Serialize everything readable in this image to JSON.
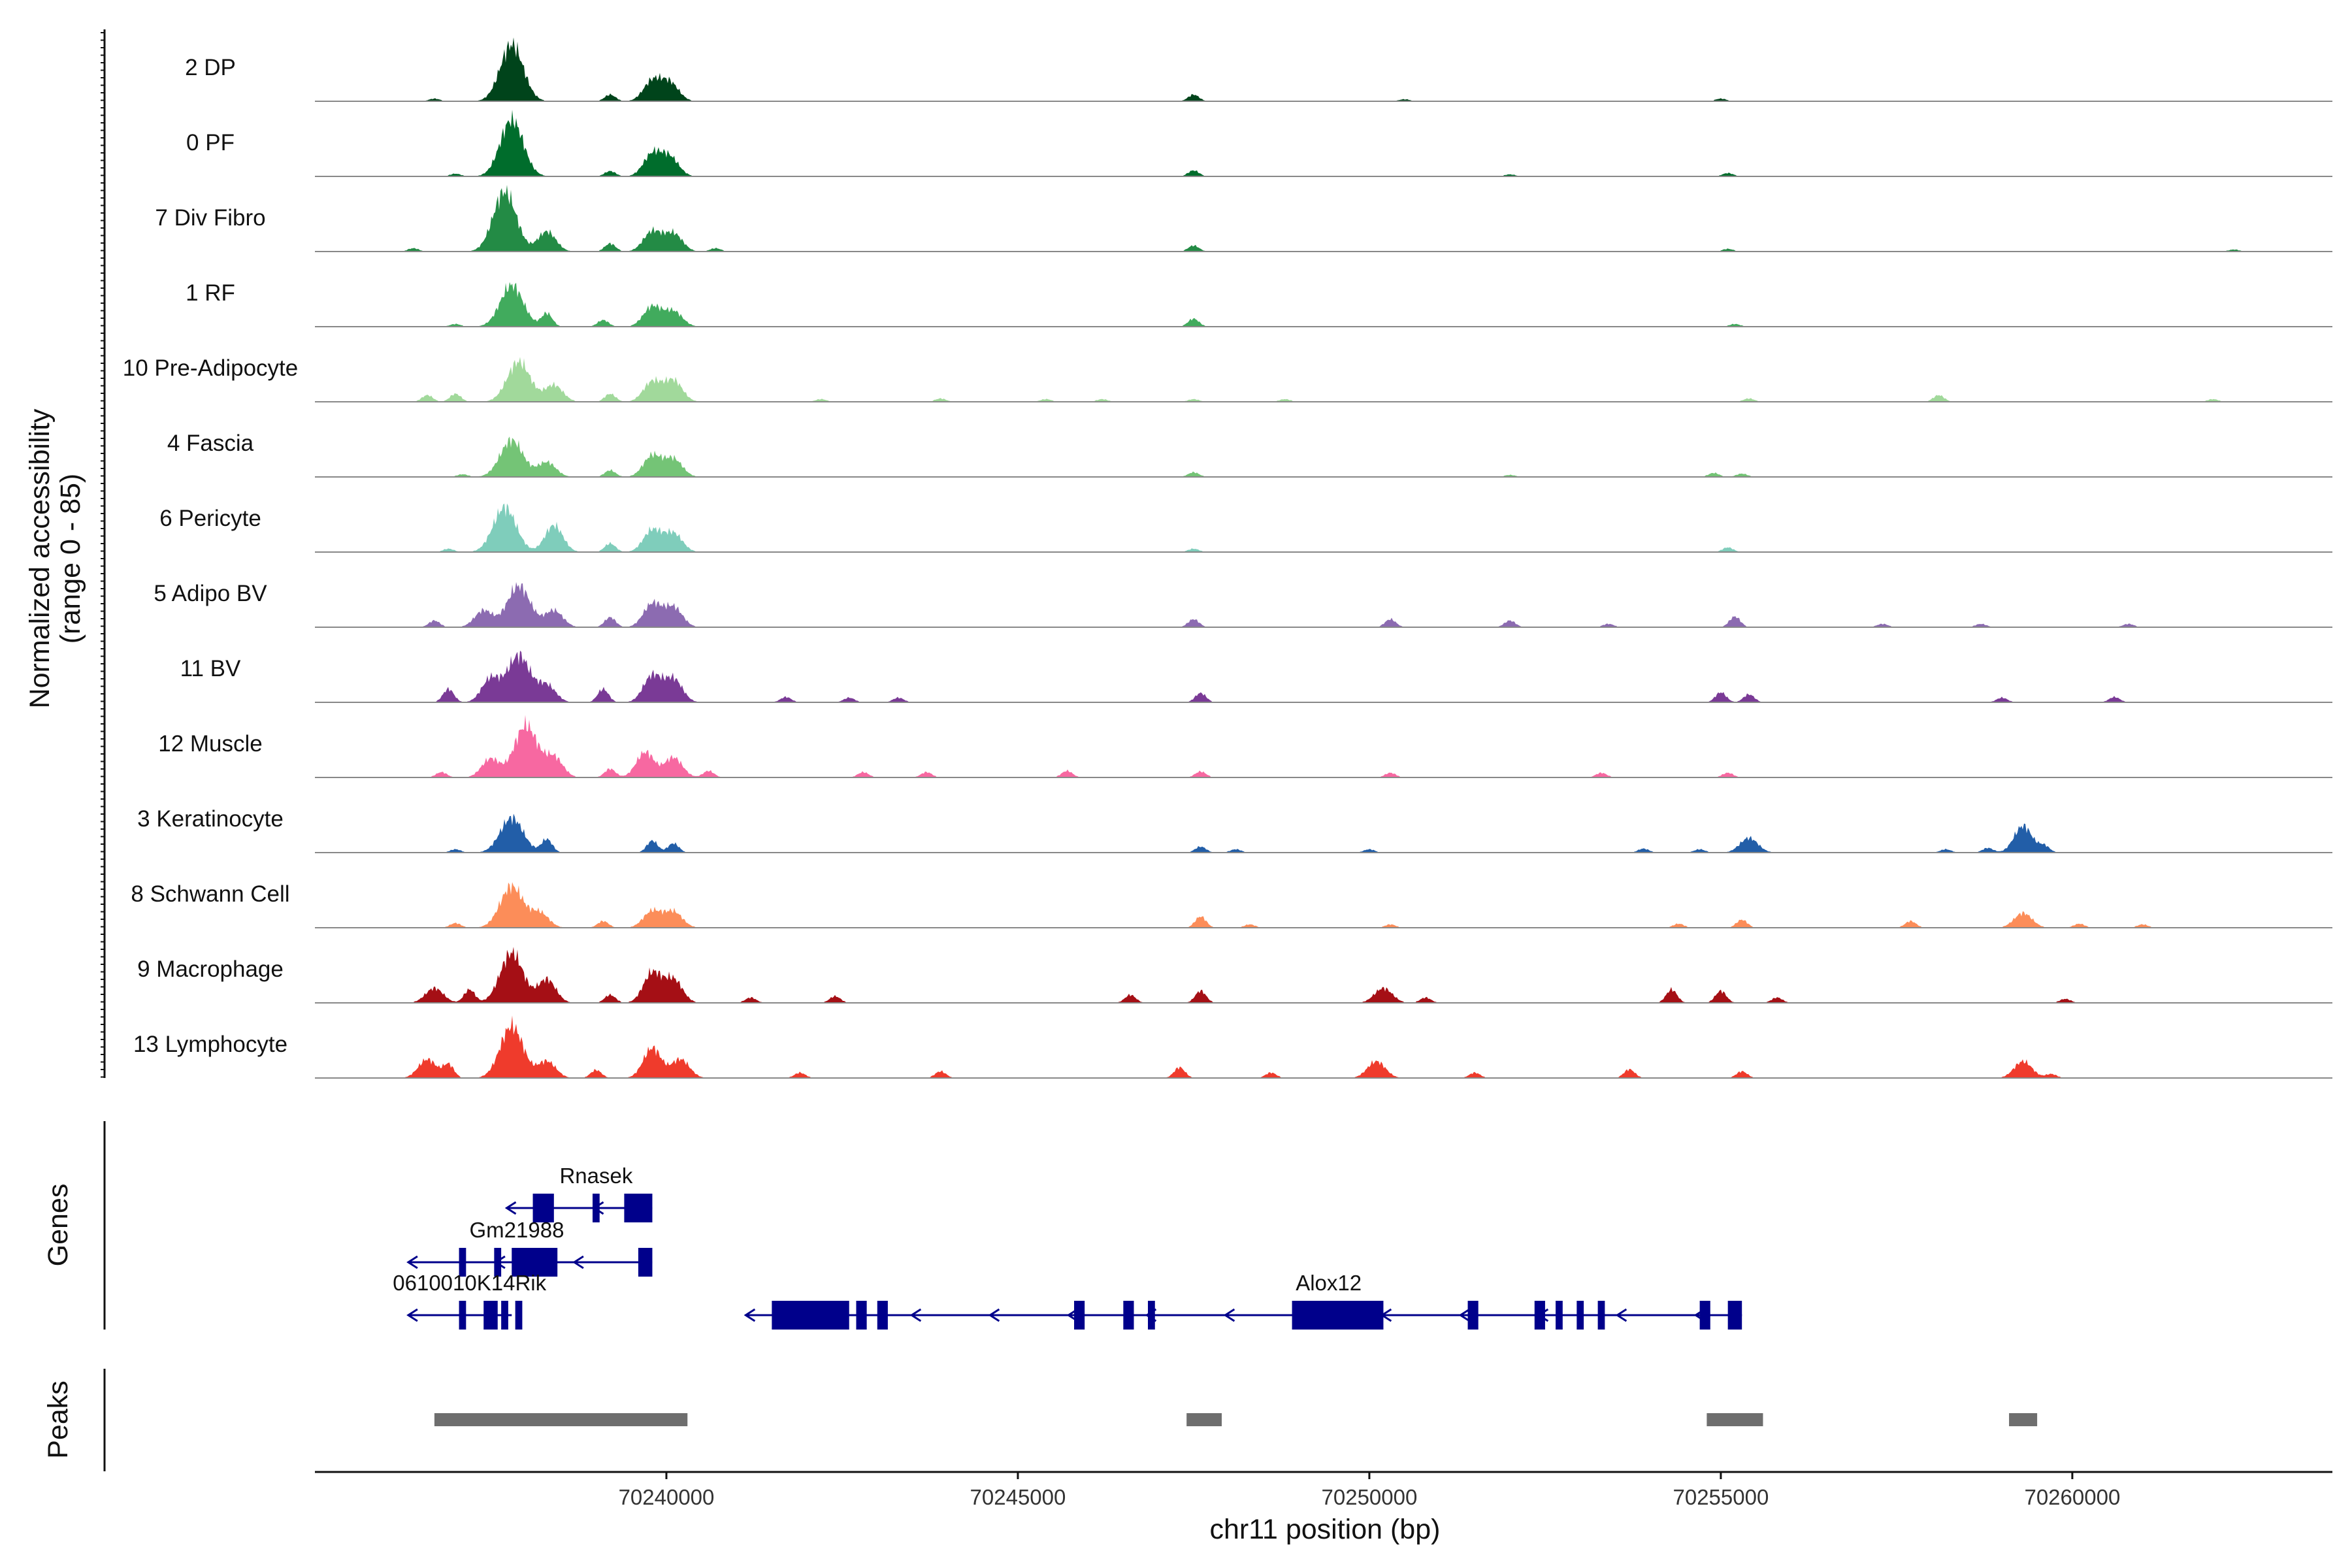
{
  "chart_data": {
    "type": "area",
    "title": "",
    "chromosome": "chr11",
    "xlabel": "chr11 position (bp)",
    "ylabel": "Normalized accessibility",
    "ylabel_range": "(range 0 - 85)",
    "ylim": [
      0,
      85
    ],
    "xlim": [
      70235000,
      70263700
    ],
    "x_ticks": [
      70240000,
      70245000,
      70250000,
      70255000,
      70260000
    ],
    "x_tick_labels": [
      "70240000",
      "70245000",
      "70250000",
      "70255000",
      "70260000"
    ],
    "series": [
      {
        "name": "2 DP",
        "color": "#00441b",
        "peaks": [
          [
            70236700,
            0.04
          ],
          [
            70237800,
            0.85
          ],
          [
            70239200,
            0.1
          ],
          [
            70239800,
            0.3
          ],
          [
            70240050,
            0.27
          ],
          [
            70247500,
            0.1
          ],
          [
            70250500,
            0.03
          ],
          [
            70255000,
            0.04
          ]
        ]
      },
      {
        "name": "0 PF",
        "color": "#006d2c",
        "peaks": [
          [
            70237000,
            0.04
          ],
          [
            70237800,
            0.85
          ],
          [
            70239200,
            0.08
          ],
          [
            70239800,
            0.33
          ],
          [
            70240050,
            0.28
          ],
          [
            70247500,
            0.09
          ],
          [
            70252000,
            0.03
          ],
          [
            70255100,
            0.05
          ]
        ]
      },
      {
        "name": "7 Div Fibro",
        "color": "#238b45",
        "peaks": [
          [
            70236400,
            0.05
          ],
          [
            70237700,
            0.9
          ],
          [
            70238300,
            0.3
          ],
          [
            70239200,
            0.12
          ],
          [
            70239800,
            0.3
          ],
          [
            70240100,
            0.27
          ],
          [
            70240700,
            0.05
          ],
          [
            70247500,
            0.09
          ],
          [
            70255100,
            0.04
          ],
          [
            70262300,
            0.03
          ]
        ]
      },
      {
        "name": "1 RF",
        "color": "#41ab5d",
        "peaks": [
          [
            70237000,
            0.04
          ],
          [
            70237800,
            0.62
          ],
          [
            70238300,
            0.2
          ],
          [
            70239100,
            0.1
          ],
          [
            70239800,
            0.3
          ],
          [
            70240100,
            0.23
          ],
          [
            70247500,
            0.12
          ],
          [
            70255200,
            0.04
          ]
        ]
      },
      {
        "name": "10 Pre-Adipocyte",
        "color": "#a1d99b",
        "peaks": [
          [
            70236600,
            0.1
          ],
          [
            70237000,
            0.12
          ],
          [
            70237900,
            0.6
          ],
          [
            70238400,
            0.25
          ],
          [
            70239200,
            0.12
          ],
          [
            70239800,
            0.3
          ],
          [
            70240100,
            0.32
          ],
          [
            70242200,
            0.04
          ],
          [
            70243900,
            0.05
          ],
          [
            70245400,
            0.04
          ],
          [
            70246200,
            0.04
          ],
          [
            70247500,
            0.04
          ],
          [
            70248800,
            0.04
          ],
          [
            70255400,
            0.05
          ],
          [
            70258100,
            0.1
          ],
          [
            70262000,
            0.04
          ]
        ]
      },
      {
        "name": "4 Fascia",
        "color": "#74c476",
        "peaks": [
          [
            70237100,
            0.04
          ],
          [
            70237800,
            0.55
          ],
          [
            70238300,
            0.22
          ],
          [
            70239200,
            0.1
          ],
          [
            70239800,
            0.32
          ],
          [
            70240100,
            0.27
          ],
          [
            70247500,
            0.07
          ],
          [
            70252000,
            0.03
          ],
          [
            70254900,
            0.06
          ],
          [
            70255300,
            0.05
          ]
        ]
      },
      {
        "name": "6 Pericyte",
        "color": "#7fcdbb",
        "peaks": [
          [
            70236900,
            0.05
          ],
          [
            70237700,
            0.67
          ],
          [
            70238400,
            0.4
          ],
          [
            70239200,
            0.13
          ],
          [
            70239800,
            0.33
          ],
          [
            70240100,
            0.28
          ],
          [
            70247500,
            0.05
          ],
          [
            70255100,
            0.07
          ]
        ]
      },
      {
        "name": "5 Adipo BV",
        "color": "#8c6bb1",
        "peaks": [
          [
            70236700,
            0.1
          ],
          [
            70237400,
            0.25
          ],
          [
            70237900,
            0.62
          ],
          [
            70238400,
            0.25
          ],
          [
            70239200,
            0.15
          ],
          [
            70239800,
            0.35
          ],
          [
            70240100,
            0.3
          ],
          [
            70247500,
            0.12
          ],
          [
            70250300,
            0.12
          ],
          [
            70252000,
            0.1
          ],
          [
            70253400,
            0.05
          ],
          [
            70255200,
            0.16
          ],
          [
            70257300,
            0.05
          ],
          [
            70258700,
            0.05
          ],
          [
            70260800,
            0.05
          ]
        ]
      },
      {
        "name": "11 BV",
        "color": "#7a3a96",
        "peaks": [
          [
            70236900,
            0.2
          ],
          [
            70237500,
            0.35
          ],
          [
            70237900,
            0.7
          ],
          [
            70238300,
            0.25
          ],
          [
            70239100,
            0.2
          ],
          [
            70239800,
            0.4
          ],
          [
            70240100,
            0.35
          ],
          [
            70241700,
            0.08
          ],
          [
            70242600,
            0.07
          ],
          [
            70243300,
            0.07
          ],
          [
            70247600,
            0.14
          ],
          [
            70255000,
            0.15
          ],
          [
            70255400,
            0.12
          ],
          [
            70259000,
            0.07
          ],
          [
            70260600,
            0.08
          ]
        ]
      },
      {
        "name": "12 Muscle",
        "color": "#f768a1",
        "peaks": [
          [
            70236800,
            0.08
          ],
          [
            70237500,
            0.28
          ],
          [
            70238000,
            0.78
          ],
          [
            70238400,
            0.3
          ],
          [
            70239200,
            0.13
          ],
          [
            70239700,
            0.38
          ],
          [
            70240100,
            0.3
          ],
          [
            70240600,
            0.1
          ],
          [
            70242800,
            0.08
          ],
          [
            70243700,
            0.08
          ],
          [
            70245700,
            0.1
          ],
          [
            70247600,
            0.09
          ],
          [
            70250300,
            0.07
          ],
          [
            70253300,
            0.07
          ],
          [
            70255100,
            0.07
          ]
        ]
      },
      {
        "name": "3 Keratinocyte",
        "color": "#225ea8",
        "peaks": [
          [
            70237000,
            0.05
          ],
          [
            70237800,
            0.52
          ],
          [
            70238300,
            0.2
          ],
          [
            70239800,
            0.18
          ],
          [
            70240100,
            0.14
          ],
          [
            70247600,
            0.09
          ],
          [
            70248100,
            0.05
          ],
          [
            70250000,
            0.05
          ],
          [
            70253900,
            0.06
          ],
          [
            70254700,
            0.05
          ],
          [
            70255400,
            0.22
          ],
          [
            70258200,
            0.05
          ],
          [
            70258800,
            0.07
          ],
          [
            70259300,
            0.4
          ],
          [
            70259600,
            0.1
          ]
        ]
      },
      {
        "name": "8 Schwann Cell",
        "color": "#fc8d59",
        "peaks": [
          [
            70237000,
            0.07
          ],
          [
            70237800,
            0.62
          ],
          [
            70238200,
            0.22
          ],
          [
            70239100,
            0.1
          ],
          [
            70239800,
            0.25
          ],
          [
            70240100,
            0.24
          ],
          [
            70247600,
            0.17
          ],
          [
            70248300,
            0.05
          ],
          [
            70250300,
            0.05
          ],
          [
            70254400,
            0.06
          ],
          [
            70255300,
            0.12
          ],
          [
            70257700,
            0.1
          ],
          [
            70259300,
            0.22
          ],
          [
            70260100,
            0.06
          ],
          [
            70261000,
            0.05
          ]
        ]
      },
      {
        "name": "9 Macrophage",
        "color": "#a50f15",
        "peaks": [
          [
            70236700,
            0.22
          ],
          [
            70237200,
            0.2
          ],
          [
            70237800,
            0.75
          ],
          [
            70238300,
            0.35
          ],
          [
            70239200,
            0.12
          ],
          [
            70239800,
            0.45
          ],
          [
            70240100,
            0.35
          ],
          [
            70241200,
            0.08
          ],
          [
            70242400,
            0.1
          ],
          [
            70246600,
            0.12
          ],
          [
            70247600,
            0.18
          ],
          [
            70250200,
            0.22
          ],
          [
            70250800,
            0.08
          ],
          [
            70254300,
            0.2
          ],
          [
            70255000,
            0.18
          ],
          [
            70255800,
            0.08
          ],
          [
            70259900,
            0.06
          ]
        ]
      },
      {
        "name": "13 Lymphocyte",
        "color": "#ef3b2c",
        "peaks": [
          [
            70236600,
            0.28
          ],
          [
            70236900,
            0.2
          ],
          [
            70237800,
            0.78
          ],
          [
            70238300,
            0.25
          ],
          [
            70239000,
            0.12
          ],
          [
            70239800,
            0.45
          ],
          [
            70240200,
            0.28
          ],
          [
            70241900,
            0.08
          ],
          [
            70243900,
            0.1
          ],
          [
            70247300,
            0.16
          ],
          [
            70248600,
            0.08
          ],
          [
            70250100,
            0.25
          ],
          [
            70251500,
            0.08
          ],
          [
            70253700,
            0.13
          ],
          [
            70255300,
            0.1
          ],
          [
            70259300,
            0.25
          ],
          [
            70259700,
            0.06
          ]
        ]
      }
    ],
    "genes": [
      {
        "name": "Rnasek",
        "row": 0,
        "start": 70238100,
        "end": 70239800,
        "exons": [
          [
            70238100,
            70238400
          ],
          [
            70238950,
            70239050
          ],
          [
            70239400,
            70239800
          ]
        ],
        "strand": "-"
      },
      {
        "name": "Gm21988",
        "row": 1,
        "start": 70236700,
        "end": 70239800,
        "exons": [
          [
            70237050,
            70237150
          ],
          [
            70237550,
            70237650
          ],
          [
            70237800,
            70238450
          ],
          [
            70239600,
            70239800
          ]
        ],
        "strand": "-"
      },
      {
        "name": "0610010K14Rik",
        "row": 2,
        "start": 70236700,
        "end": 70237800,
        "exons": [
          [
            70237050,
            70237150
          ],
          [
            70237400,
            70237600
          ],
          [
            70237650,
            70237750
          ],
          [
            70237850,
            70237950
          ]
        ],
        "strand": "-"
      },
      {
        "name": "Alox12",
        "row": 2,
        "start": 70241500,
        "end": 70255300,
        "exons": [
          [
            70241500,
            70242600
          ],
          [
            70242700,
            70242850
          ],
          [
            70243000,
            70243150
          ],
          [
            70245800,
            70245950
          ],
          [
            70246500,
            70246650
          ],
          [
            70246850,
            70246950
          ],
          [
            70248900,
            70250200
          ],
          [
            70251400,
            70251550
          ],
          [
            70252350,
            70252500
          ],
          [
            70252650,
            70252750
          ],
          [
            70252950,
            70253050
          ],
          [
            70253250,
            70253350
          ],
          [
            70254700,
            70254850
          ],
          [
            70255100,
            70255300
          ]
        ],
        "strand": "-"
      }
    ],
    "peak_regions": [
      [
        70236700,
        70240300
      ],
      [
        70247400,
        70247900
      ],
      [
        70254800,
        70255600
      ],
      [
        70259100,
        70259500
      ]
    ],
    "panel_labels": {
      "genes": "Genes",
      "peaks": "Peaks"
    }
  }
}
